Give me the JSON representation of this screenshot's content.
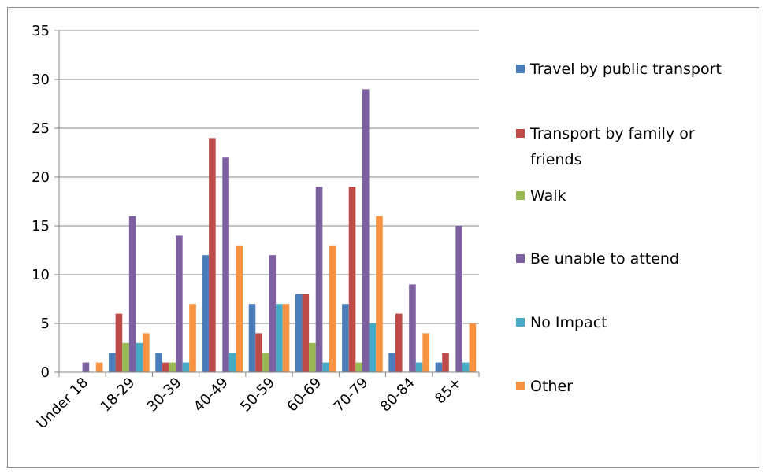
{
  "chart_data": {
    "type": "bar",
    "categories": [
      "Under 18",
      "18-29",
      "30-39",
      "40-49",
      "50-59",
      "60-69",
      "70-79",
      "80-84",
      "85+"
    ],
    "series": [
      {
        "name": "Travel by public transport",
        "color": "#4a7ebb",
        "values": [
          0,
          2,
          2,
          12,
          7,
          8,
          7,
          2,
          1
        ]
      },
      {
        "name": "Transport by family or friends",
        "color": "#be4b48",
        "values": [
          0,
          6,
          1,
          24,
          4,
          8,
          19,
          6,
          2
        ]
      },
      {
        "name": "Walk",
        "color": "#98b954",
        "values": [
          0,
          3,
          1,
          0,
          2,
          3,
          1,
          0,
          0
        ]
      },
      {
        "name": "Be unable to attend",
        "color": "#7d60a0",
        "values": [
          1,
          16,
          14,
          22,
          12,
          19,
          29,
          9,
          15
        ]
      },
      {
        "name": "No Impact",
        "color": "#46aac5",
        "values": [
          0,
          3,
          1,
          2,
          7,
          1,
          5,
          1,
          1
        ]
      },
      {
        "name": "Other",
        "color": "#f69240",
        "values": [
          1,
          4,
          7,
          13,
          7,
          13,
          16,
          4,
          5
        ]
      }
    ],
    "yticks": [
      "0",
      "5",
      "10",
      "15",
      "20",
      "25",
      "30",
      "35"
    ],
    "ylim": [
      0,
      35
    ],
    "grid": true,
    "legend_position": "right"
  }
}
